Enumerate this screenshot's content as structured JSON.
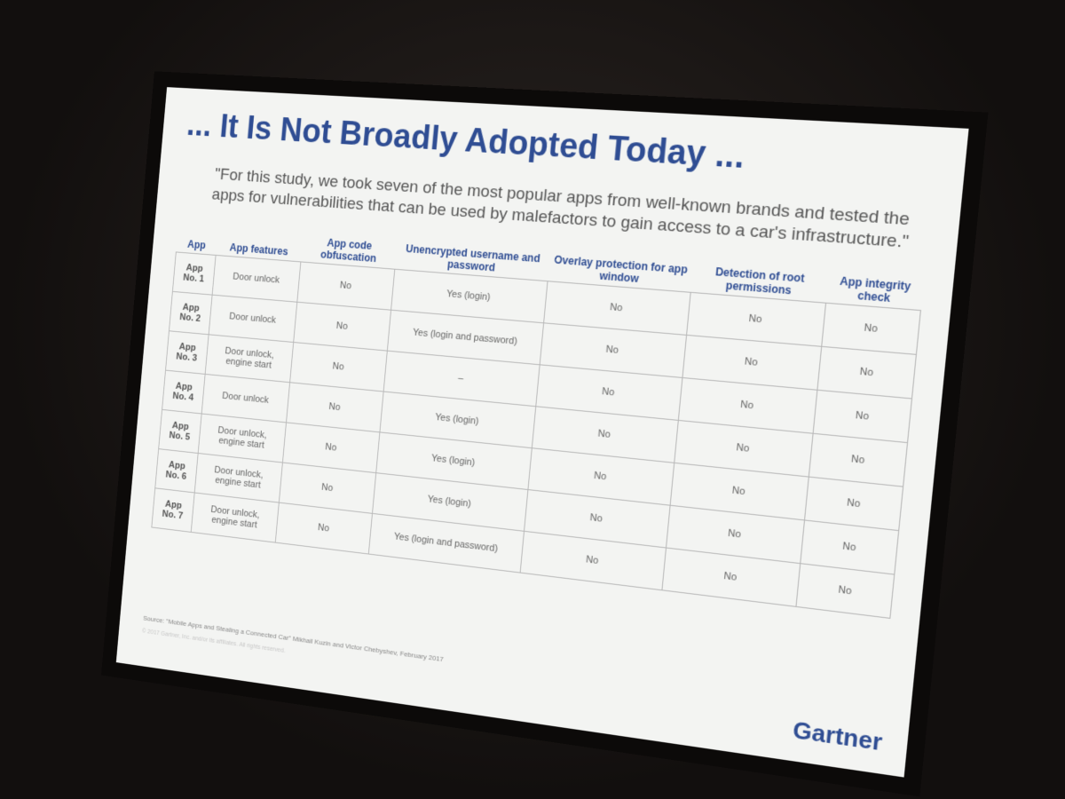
{
  "slide": {
    "title": "... It Is Not Broadly Adopted Today ...",
    "quote": "\"For this study, we took seven of the most popular apps from well-known brands and tested the apps for vulnerabilities that can be used by malefactors to gain access to a car's infrastructure.\"",
    "table": {
      "headers": [
        "App",
        "App features",
        "App code obfuscation",
        "Unencrypted username and password",
        "Overlay protection for app window",
        "Detection of root permissions",
        "App integrity check"
      ],
      "rows": [
        [
          "App No. 1",
          "Door unlock",
          "No",
          "Yes (login)",
          "No",
          "No",
          "No"
        ],
        [
          "App No. 2",
          "Door unlock",
          "No",
          "Yes (login and password)",
          "No",
          "No",
          "No"
        ],
        [
          "App No. 3",
          "Door unlock, engine start",
          "No",
          "–",
          "No",
          "No",
          "No"
        ],
        [
          "App No. 4",
          "Door unlock",
          "No",
          "Yes (login)",
          "No",
          "No",
          "No"
        ],
        [
          "App No. 5",
          "Door unlock, engine start",
          "No",
          "Yes (login)",
          "No",
          "No",
          "No"
        ],
        [
          "App No. 6",
          "Door unlock, engine start",
          "No",
          "Yes (login)",
          "No",
          "No",
          "No"
        ],
        [
          "App No. 7",
          "Door unlock, engine start",
          "No",
          "Yes (login and password)",
          "No",
          "No",
          "No"
        ]
      ]
    },
    "source": "Source: \"Mobile Apps and Stealing a Connected Car\" Mikhail Kuzin and Victor Chebyshev, February 2017",
    "copyright": "© 2017 Gartner, Inc. and/or its affiliates. All rights reserved.",
    "logo": "Gartner"
  }
}
